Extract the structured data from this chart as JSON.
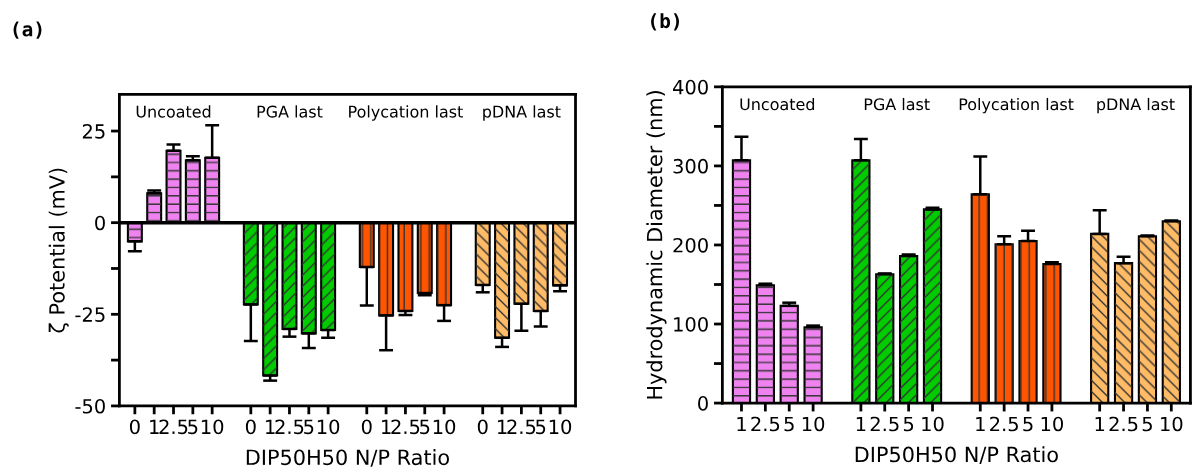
{
  "chart_data": [
    {
      "type": "bar",
      "title": "(a)",
      "xlabel": "DIP50H50 N/P Ratio",
      "ylabel": "ζ Potential (mV)",
      "categories": [
        "0",
        "1",
        "2.5",
        "5",
        "10",
        null,
        "0",
        "1",
        "2.5",
        "5",
        "10",
        null,
        "0",
        "1",
        "2.5",
        "5",
        "10",
        null,
        "0",
        "1",
        "2.5",
        "5",
        "10"
      ],
      "values": [
        -5.1,
        8.0,
        19.6,
        17.0,
        17.7,
        null,
        -22.3,
        -41.7,
        -29.0,
        -30.2,
        -29.3,
        null,
        -12.1,
        -25.3,
        -24.1,
        -19.2,
        -22.5,
        null,
        -17.0,
        -31.4,
        -22.1,
        -24.1,
        -17.1
      ],
      "errors": [
        [
          -7.8,
          -5.1
        ],
        [
          8.0,
          8.8
        ],
        [
          19.6,
          21.3
        ],
        [
          17.0,
          18.1
        ],
        [
          17.7,
          26.6
        ],
        null,
        [
          -32.3,
          -22.3
        ],
        [
          -43.1,
          -41.7
        ],
        [
          -31.1,
          -29.0
        ],
        [
          -34.2,
          -30.2
        ],
        [
          -31.4,
          -29.3
        ],
        null,
        [
          -22.6,
          -12.1
        ],
        [
          -34.8,
          -25.3
        ],
        [
          -25.2,
          -24.1
        ],
        [
          -19.8,
          -19.2
        ],
        [
          -26.8,
          -22.5
        ],
        null,
        [
          -19.0,
          -17.0
        ],
        [
          -33.9,
          -31.4
        ],
        [
          -29.5,
          -22.1
        ],
        [
          -28.3,
          -24.1
        ],
        [
          -18.7,
          -17.1
        ]
      ],
      "colors": [
        "#ee82ee",
        "#ee82ee",
        "#ee82ee",
        "#ee82ee",
        "#ee82ee",
        null,
        "#00cc00",
        "#00cc00",
        "#00cc00",
        "#00cc00",
        "#00cc00",
        null,
        "#ff5500",
        "#ff5500",
        "#ff5500",
        "#ff5500",
        "#ff5500",
        null,
        "#ffbb66",
        "#ffbb66",
        "#ffbb66",
        "#ffbb66",
        "#ffbb66"
      ],
      "ylim": [
        -50,
        35
      ],
      "yticks": [
        -50,
        {
          "value": -37.5,
          "label": null
        },
        -25,
        {
          "value": -12.5,
          "label": null
        },
        0,
        {
          "value": 12.5,
          "label": null
        },
        25
      ],
      "ref_lines": [
        {
          "axis": "y",
          "value": 0,
          "color": "#000000"
        }
      ],
      "annotations": [
        "Uncoated",
        "PGA last",
        "Polycation last",
        "pDNA last"
      ],
      "grid": false,
      "legend": false
    },
    {
      "type": "bar",
      "title": "(b)",
      "xlabel": "DIP50H50 N/P Ratio",
      "ylabel": "Hydrodynamic Diameter (nm)",
      "categories": [
        "1",
        "2.5",
        "5",
        "10",
        null,
        "1",
        "2.5",
        "5",
        "10",
        null,
        "1",
        "2.5",
        "5",
        "10",
        null,
        "1",
        "2.5",
        "5",
        "10"
      ],
      "values": [
        307,
        149,
        123,
        96,
        null,
        307,
        163,
        186,
        245,
        null,
        264,
        201,
        205,
        176,
        null,
        214,
        177,
        211,
        230
      ],
      "errors": [
        [
          307,
          337
        ],
        [
          149,
          151
        ],
        [
          123,
          127
        ],
        [
          96,
          98
        ],
        null,
        [
          307,
          334
        ],
        [
          163,
          164
        ],
        [
          186,
          188
        ],
        [
          245,
          247
        ],
        null,
        [
          264,
          312
        ],
        [
          201,
          211
        ],
        [
          205,
          218
        ],
        [
          176,
          178
        ],
        null,
        [
          214,
          244
        ],
        [
          177,
          185
        ],
        [
          211,
          212
        ],
        [
          230,
          231
        ]
      ],
      "colors": [
        "#ee82ee",
        "#ee82ee",
        "#ee82ee",
        "#ee82ee",
        null,
        "#00cc00",
        "#00cc00",
        "#00cc00",
        "#00cc00",
        null,
        "#ff5500",
        "#ff5500",
        "#ff5500",
        "#ff5500",
        null,
        "#ffbb66",
        "#ffbb66",
        "#ffbb66",
        "#ffbb66"
      ],
      "ylim": [
        0,
        400
      ],
      "yticks": [
        0,
        {
          "value": 50,
          "label": null
        },
        100,
        {
          "value": 150,
          "label": null
        },
        200,
        {
          "value": 250,
          "label": null
        },
        300,
        {
          "value": 350,
          "label": null
        },
        400
      ],
      "annotations": [
        "Uncoated",
        "PGA last",
        "Polycation last",
        "pDNA last"
      ],
      "grid": false,
      "legend": false
    }
  ]
}
